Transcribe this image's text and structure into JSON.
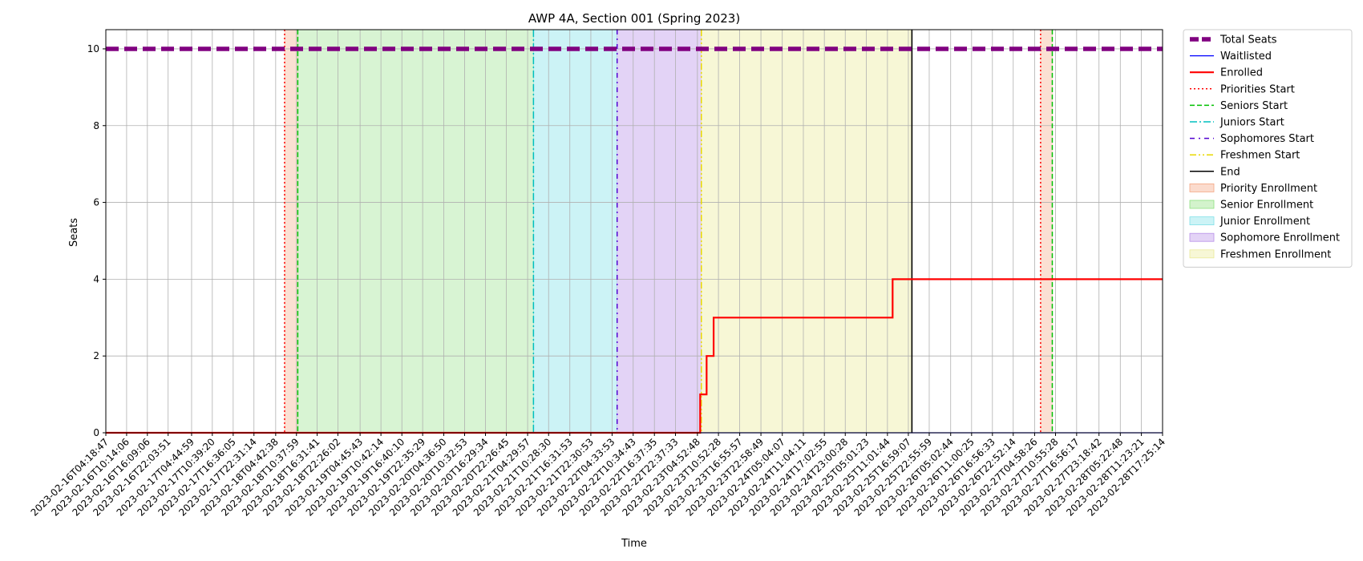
{
  "chart_data": {
    "type": "line",
    "title": "AWP 4A, Section 001 (Spring 2023)",
    "xlabel": "Time",
    "ylabel": "Seats",
    "ylim": [
      0,
      10.5
    ],
    "yticks": [
      0,
      2,
      4,
      6,
      8,
      10
    ],
    "grid": true,
    "legend_position": "outside right, top",
    "x_ticks": [
      "2023-02-16T04:18:47",
      "2023-02-16T10:14:06",
      "2023-02-16T16:09:06",
      "2023-02-16T22:03:51",
      "2023-02-17T04:44:59",
      "2023-02-17T10:39:20",
      "2023-02-17T16:36:05",
      "2023-02-17T22:31:14",
      "2023-02-18T04:42:38",
      "2023-02-18T10:37:59",
      "2023-02-18T16:31:41",
      "2023-02-18T22:26:02",
      "2023-02-19T04:45:43",
      "2023-02-19T10:42:14",
      "2023-02-19T16:40:10",
      "2023-02-19T22:35:29",
      "2023-02-20T04:36:50",
      "2023-02-20T10:32:53",
      "2023-02-20T16:29:34",
      "2023-02-20T22:26:45",
      "2023-02-21T04:29:57",
      "2023-02-21T10:28:30",
      "2023-02-21T16:31:53",
      "2023-02-21T22:30:53",
      "2023-02-22T04:33:53",
      "2023-02-22T10:34:43",
      "2023-02-22T16:37:35",
      "2023-02-22T22:37:33",
      "2023-02-23T04:52:48",
      "2023-02-23T10:52:28",
      "2023-02-23T16:55:57",
      "2023-02-23T22:58:49",
      "2023-02-24T05:04:07",
      "2023-02-24T11:04:11",
      "2023-02-24T17:02:55",
      "2023-02-24T23:00:28",
      "2023-02-25T05:01:23",
      "2023-02-25T11:01:44",
      "2023-02-25T16:59:07",
      "2023-02-25T22:55:59",
      "2023-02-26T05:02:44",
      "2023-02-26T11:00:25",
      "2023-02-26T16:56:33",
      "2023-02-26T22:52:14",
      "2023-02-27T04:58:26",
      "2023-02-27T10:55:28",
      "2023-02-27T16:56:17",
      "2023-02-27T23:18:42",
      "2023-02-28T05:22:48",
      "2023-02-28T11:23:21",
      "2023-02-28T17:25:14"
    ],
    "series": [
      {
        "name": "Total Seats",
        "color": "#800080",
        "style": "dashed-thick",
        "points": [
          [
            "2023-02-16T04:18:47",
            10
          ],
          [
            "2023-02-28T17:25:14",
            10
          ]
        ]
      },
      {
        "name": "Waitlisted",
        "color": "#0000ff",
        "style": "solid-thin",
        "points": [
          [
            "2023-02-16T04:18:47",
            0
          ],
          [
            "2023-02-28T17:25:14",
            0
          ]
        ]
      },
      {
        "name": "Enrolled",
        "color": "#ff0000",
        "style": "step",
        "points": [
          [
            "2023-02-16T04:18:47",
            0
          ],
          [
            "2023-02-23T05:40:00",
            0
          ],
          [
            "2023-02-23T05:40:00",
            1
          ],
          [
            "2023-02-23T07:30:00",
            1
          ],
          [
            "2023-02-23T07:30:00",
            2
          ],
          [
            "2023-02-23T09:30:00",
            2
          ],
          [
            "2023-02-23T09:30:00",
            3
          ],
          [
            "2023-02-25T12:30:00",
            3
          ],
          [
            "2023-02-25T12:30:00",
            4
          ],
          [
            "2023-02-28T17:25:14",
            4
          ]
        ]
      }
    ],
    "markers": [
      {
        "name": "Priorities Start",
        "time": "2023-02-18T07:15:00",
        "color": "#ff0000",
        "style": "dotted"
      },
      {
        "name": "Seniors Start",
        "time": "2023-02-18T11:00:00",
        "color": "#00c000",
        "style": "dashed"
      },
      {
        "name": "Juniors Start",
        "time": "2023-02-21T06:10:00",
        "color": "#00bfbf",
        "style": "dashdot"
      },
      {
        "name": "Sophomores Start",
        "time": "2023-02-22T06:00:00",
        "color": "#5000d0",
        "style": "loose-dashdot"
      },
      {
        "name": "Freshmen Start",
        "time": "2023-02-23T06:00:00",
        "color": "#e8d800",
        "style": "dashdotdot"
      },
      {
        "name": "End",
        "time": "2023-02-25T18:00:00",
        "color": "#000000",
        "style": "solid"
      },
      {
        "name": "Priorities Start",
        "time": "2023-02-27T06:40:00",
        "color": "#ff0000",
        "style": "dotted"
      },
      {
        "name": "Seniors Start",
        "time": "2023-02-27T10:00:00",
        "color": "#00c000",
        "style": "dashed"
      }
    ],
    "periods": [
      {
        "name": "Priority Enrollment",
        "start": "2023-02-18T07:15:00",
        "end": "2023-02-18T11:00:00",
        "color": "#f4a582",
        "opacity": 0.35
      },
      {
        "name": "Senior Enrollment",
        "start": "2023-02-18T11:00:00",
        "end": "2023-02-21T06:10:00",
        "color": "#90e080",
        "opacity": 0.35
      },
      {
        "name": "Junior Enrollment",
        "start": "2023-02-21T06:10:00",
        "end": "2023-02-22T06:00:00",
        "color": "#80e0e8",
        "opacity": 0.4
      },
      {
        "name": "Sophomore Enrollment",
        "start": "2023-02-22T06:00:00",
        "end": "2023-02-23T06:00:00",
        "color": "#b890e8",
        "opacity": 0.4
      },
      {
        "name": "Freshmen Enrollment",
        "start": "2023-02-23T06:00:00",
        "end": "2023-02-25T18:00:00",
        "color": "#eaea98",
        "opacity": 0.4
      },
      {
        "name": "Priority Enrollment",
        "start": "2023-02-27T06:40:00",
        "end": "2023-02-27T10:00:00",
        "color": "#f4a582",
        "opacity": 0.35
      }
    ],
    "legend": [
      {
        "label": "Total Seats",
        "kind": "line",
        "color": "#800080",
        "style": "dashed-thick"
      },
      {
        "label": "Waitlisted",
        "kind": "line",
        "color": "#0000ff",
        "style": "solid-thin"
      },
      {
        "label": "Enrolled",
        "kind": "line",
        "color": "#ff0000",
        "style": "solid-thick"
      },
      {
        "label": "Priorities Start",
        "kind": "line",
        "color": "#ff0000",
        "style": "dotted"
      },
      {
        "label": "Seniors Start",
        "kind": "line",
        "color": "#00c000",
        "style": "dashed"
      },
      {
        "label": "Juniors Start",
        "kind": "line",
        "color": "#00bfbf",
        "style": "dashdot"
      },
      {
        "label": "Sophomores Start",
        "kind": "line",
        "color": "#5000d0",
        "style": "loose-dashdot"
      },
      {
        "label": "Freshmen Start",
        "kind": "line",
        "color": "#e8d800",
        "style": "dashdotdot"
      },
      {
        "label": "End",
        "kind": "line",
        "color": "#000000",
        "style": "solid"
      },
      {
        "label": "Priority Enrollment",
        "kind": "patch",
        "color": "#f4a582"
      },
      {
        "label": "Senior Enrollment",
        "kind": "patch",
        "color": "#90e080"
      },
      {
        "label": "Junior Enrollment",
        "kind": "patch",
        "color": "#80e0e8"
      },
      {
        "label": "Sophomore Enrollment",
        "kind": "patch",
        "color": "#b890e8"
      },
      {
        "label": "Freshmen Enrollment",
        "kind": "patch",
        "color": "#eaea98"
      }
    ]
  }
}
